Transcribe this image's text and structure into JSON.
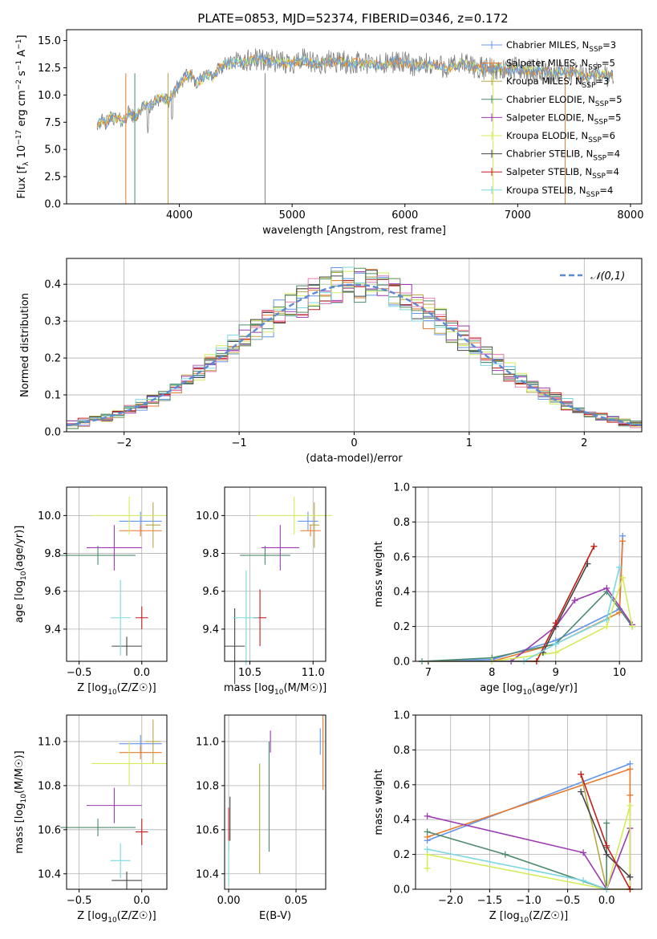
{
  "figure": {
    "title": "PLATE=0853, MJD=52374, FIBERID=0346, z=0.172"
  },
  "colors": {
    "data": "#808080",
    "models": [
      "#6495ed",
      "#e8792b",
      "#b5a642",
      "#4d8a6e",
      "#9a3ab0",
      "#d4ec5a",
      "#444444",
      "#c41f1f",
      "#7ad8e0"
    ],
    "extra": [
      "#e57bb5",
      "#5a8f5a"
    ]
  },
  "chart_data": [
    {
      "id": "spectrum",
      "type": "line",
      "xlabel": "wavelength [Angstrom, rest frame]",
      "ylabel": "Flux [f_λ 10^-17 erg cm^-2 s^-1 A^-1]",
      "xlim": [
        3000,
        8100
      ],
      "ylim": [
        0,
        16
      ],
      "xticks": [
        "4000",
        "5000",
        "6000",
        "7000",
        "8000"
      ],
      "yticks": [
        "0.0",
        "2.5",
        "5.0",
        "7.5",
        "10.0",
        "12.5",
        "15.0"
      ],
      "legend_placement": "right",
      "legend": [
        {
          "label": "Chabrier MILES, N_SSP=3"
        },
        {
          "label": "Salpeter MILES, N_SSP=5"
        },
        {
          "label": "Kroupa MILES, N_SSP=3"
        },
        {
          "label": "Chabrier ELODIE, N_SSP=5"
        },
        {
          "label": "Salpeter ELODIE, N_SSP=5"
        },
        {
          "label": "Kroupa ELODIE, N_SSP=6"
        },
        {
          "label": "Chabrier STELIB, N_SSP=4"
        },
        {
          "label": "Salpeter STELIB, N_SSP=4"
        },
        {
          "label": "Kroupa STELIB, N_SSP=4"
        }
      ],
      "data_x": [
        3270,
        3300,
        3350,
        3400,
        3450,
        3500,
        3550,
        3600,
        3650,
        3700,
        3750,
        3800,
        3850,
        3900,
        3950,
        4000,
        4050,
        4100,
        4150,
        4200,
        4250,
        4300,
        4350,
        4400,
        4500,
        4600,
        4700,
        4800,
        4900,
        5000,
        5100,
        5200,
        5300,
        5400,
        5500,
        5600,
        5700,
        5800,
        5900,
        6000,
        6100,
        6200,
        6300,
        6400,
        6500,
        6600,
        6700,
        6800,
        6900,
        7000,
        7100,
        7200,
        7300,
        7400,
        7500,
        7600,
        7700,
        7800,
        7850
      ],
      "data_y": [
        7.3,
        7.6,
        7.4,
        8.0,
        7.8,
        7.6,
        8.4,
        7.9,
        8.5,
        9.2,
        8.9,
        9.6,
        9.7,
        9.4,
        10.2,
        11.0,
        11.6,
        11.9,
        11.2,
        11.4,
        12.0,
        11.6,
        12.4,
        12.8,
        13.0,
        13.1,
        13.3,
        13.2,
        12.9,
        13.0,
        13.2,
        12.8,
        13.0,
        13.1,
        12.9,
        13.0,
        12.8,
        12.7,
        13.1,
        12.9,
        12.6,
        12.8,
        12.7,
        12.5,
        12.9,
        12.6,
        12.4,
        12.5,
        12.3,
        12.4,
        12.2,
        12.3,
        12.0,
        12.2,
        12.1,
        11.6,
        12.0,
        11.8,
        12.0
      ]
    },
    {
      "id": "residuals",
      "type": "histogram",
      "xlabel": "(data-model)/error",
      "ylabel": "Normed distribution",
      "xlim": [
        -2.5,
        2.5
      ],
      "ylim": [
        0,
        0.47
      ],
      "xticks": [
        "-2",
        "-1",
        "0",
        "1",
        "2"
      ],
      "yticks": [
        "0.0",
        "0.1",
        "0.2",
        "0.3",
        "0.4"
      ],
      "legend": [
        {
          "label": "𝒩(0,1)"
        }
      ],
      "legend_placement": "top-right",
      "bin_width": 0.1
    },
    {
      "id": "age_vs_Z",
      "type": "errorbar",
      "xlabel": "Z [log10(Z/Z☉)]",
      "ylabel": "age  [log10(age/yr)]",
      "xlim": [
        -0.6,
        0.2
      ],
      "ylim": [
        9.23,
        10.15
      ],
      "xticks": [
        "-0.5",
        "0.0"
      ],
      "yticks": [
        "9.4",
        "9.6",
        "9.8",
        "10.0"
      ],
      "points": [
        {
          "x": -0.01,
          "xerr": 0.17,
          "y": 9.97,
          "yerr": 0.05
        },
        {
          "x": -0.01,
          "xerr": 0.17,
          "y": 9.92,
          "yerr": 0.03
        },
        {
          "x": 0.09,
          "xerr": 0.06,
          "y": 9.95,
          "yerr": 0.12
        },
        {
          "x": -0.35,
          "xerr": 0.3,
          "y": 9.79,
          "yerr": 0.05
        },
        {
          "x": -0.22,
          "xerr": 0.22,
          "y": 9.83,
          "yerr": 0.12
        },
        {
          "x": -0.1,
          "xerr": 0.3,
          "y": 10.0,
          "yerr": 0.1
        },
        {
          "x": -0.12,
          "xerr": 0.12,
          "y": 9.31,
          "yerr": 0.05
        },
        {
          "x": 0.0,
          "xerr": 0.05,
          "y": 9.46,
          "yerr": 0.06
        },
        {
          "x": -0.17,
          "xerr": 0.08,
          "y": 9.46,
          "yerr": 0.2
        }
      ]
    },
    {
      "id": "age_vs_mass",
      "type": "errorbar",
      "xlabel": "mass [log10(M/M☉)]",
      "ylabel": "",
      "xlim": [
        10.3,
        11.1
      ],
      "ylim": [
        9.23,
        10.15
      ],
      "xticks": [
        "10.5",
        "11.0"
      ],
      "yticks": [
        "9.4",
        "9.6",
        "9.8",
        "10.0"
      ],
      "points": [
        {
          "x": 10.96,
          "xerr": 0.08,
          "y": 9.97,
          "yerr": 0.05
        },
        {
          "x": 10.98,
          "xerr": 0.08,
          "y": 9.92,
          "yerr": 0.03
        },
        {
          "x": 11.01,
          "xerr": 0.04,
          "y": 9.95,
          "yerr": 0.12
        },
        {
          "x": 10.62,
          "xerr": 0.2,
          "y": 9.79,
          "yerr": 0.05
        },
        {
          "x": 10.74,
          "xerr": 0.15,
          "y": 9.83,
          "yerr": 0.12
        },
        {
          "x": 10.85,
          "xerr": 0.3,
          "y": 10.0,
          "yerr": 0.1
        },
        {
          "x": 10.38,
          "xerr": 0.08,
          "y": 9.31,
          "yerr": 0.2
        },
        {
          "x": 10.58,
          "xerr": 0.05,
          "y": 9.46,
          "yerr": 0.15
        },
        {
          "x": 10.47,
          "xerr": 0.1,
          "y": 9.46,
          "yerr": 0.25
        }
      ]
    },
    {
      "id": "mass_weight_vs_age",
      "type": "line",
      "xlabel": "age  [log10(age/yr)]",
      "ylabel": "mass weight",
      "xlim": [
        6.8,
        10.35
      ],
      "ylim": [
        0,
        1.0
      ],
      "xticks": [
        "7",
        "8",
        "9",
        "10"
      ],
      "yticks": [
        "0.0",
        "0.2",
        "0.4",
        "0.6",
        "0.8",
        "1.0"
      ],
      "series": [
        {
          "x": [
            6.9,
            8.0,
            9.0,
            10.0,
            10.05
          ],
          "y": [
            0.0,
            0.01,
            0.12,
            0.3,
            0.72
          ]
        },
        {
          "x": [
            6.9,
            8.0,
            9.0,
            10.0,
            10.05
          ],
          "y": [
            0.0,
            0.0,
            0.1,
            0.28,
            0.69
          ]
        },
        {
          "x": [
            6.9,
            8.7,
            9.0,
            9.6
          ],
          "y": [
            0.0,
            0.0,
            0.22,
            0.66
          ]
        },
        {
          "x": [
            6.9,
            8.0,
            9.0,
            9.8,
            10.2
          ],
          "y": [
            0.0,
            0.02,
            0.1,
            0.4,
            0.2
          ]
        },
        {
          "x": [
            8.3,
            9.0,
            9.3,
            9.8,
            10.2
          ],
          "y": [
            0.0,
            0.2,
            0.35,
            0.42,
            0.21
          ]
        },
        {
          "x": [
            6.9,
            8.0,
            9.0,
            9.8,
            10.05,
            10.2
          ],
          "y": [
            0.0,
            0.0,
            0.05,
            0.2,
            0.48,
            0.2
          ]
        },
        {
          "x": [
            8.8,
            9.0,
            9.5
          ],
          "y": [
            0.05,
            0.2,
            0.56
          ]
        },
        {
          "x": [
            6.9,
            8.7,
            9.0,
            9.6
          ],
          "y": [
            0.0,
            0.0,
            0.22,
            0.66
          ]
        },
        {
          "x": [
            6.9,
            8.5,
            9.0,
            9.8,
            10.0
          ],
          "y": [
            0.0,
            0.0,
            0.1,
            0.24,
            0.54
          ]
        }
      ]
    },
    {
      "id": "mass_vs_Z",
      "type": "errorbar",
      "xlabel": "Z [log10(Z/Z☉)]",
      "ylabel": "mass [log10(M/M☉)]",
      "xlim": [
        -0.6,
        0.2
      ],
      "ylim": [
        10.33,
        11.12
      ],
      "xticks": [
        "-0.5",
        "0.0"
      ],
      "yticks": [
        "10.4",
        "10.6",
        "10.8",
        "11.0"
      ],
      "points": [
        {
          "x": -0.01,
          "xerr": 0.17,
          "y": 10.99,
          "yerr": 0.04
        },
        {
          "x": -0.01,
          "xerr": 0.17,
          "y": 10.95,
          "yerr": 0.03
        },
        {
          "x": 0.09,
          "xerr": 0.06,
          "y": 11.0,
          "yerr": 0.1
        },
        {
          "x": -0.35,
          "xerr": 0.3,
          "y": 10.61,
          "yerr": 0.04
        },
        {
          "x": -0.22,
          "xerr": 0.22,
          "y": 10.71,
          "yerr": 0.08
        },
        {
          "x": -0.1,
          "xerr": 0.3,
          "y": 10.9,
          "yerr": 0.1
        },
        {
          "x": -0.12,
          "xerr": 0.12,
          "y": 10.37,
          "yerr": 0.04
        },
        {
          "x": 0.0,
          "xerr": 0.05,
          "y": 10.59,
          "yerr": 0.06
        },
        {
          "x": -0.17,
          "xerr": 0.08,
          "y": 10.46,
          "yerr": 0.08
        }
      ]
    },
    {
      "id": "mass_vs_EBV",
      "type": "errorbar",
      "xlabel": "E(B-V)",
      "ylabel": "",
      "xlim": [
        -0.003,
        0.072
      ],
      "ylim": [
        10.33,
        11.12
      ],
      "xticks": [
        "0.00",
        "0.05"
      ],
      "yticks": [
        "10.4",
        "10.6",
        "10.8",
        "11.0"
      ],
      "points": [
        {
          "x": 0.068,
          "yerr": 0.06,
          "y": 11.0
        },
        {
          "x": 0.07,
          "yerr": 0.17,
          "y": 10.95
        },
        {
          "x": 0.023,
          "yerr": 0.25,
          "y": 10.65
        },
        {
          "x": 0.03,
          "yerr": 0.25,
          "y": 10.75
        },
        {
          "x": 0.031,
          "yerr": 0.05,
          "y": 11.0
        },
        {
          "x": 0.0,
          "yerr": 0.12,
          "y": 10.47
        },
        {
          "x": 0.001,
          "yerr": 0.1,
          "y": 10.65
        },
        {
          "x": 0.0,
          "yerr": 0.1,
          "y": 10.6
        },
        {
          "x": 0.0,
          "yerr": 0.1,
          "y": 10.45
        }
      ]
    },
    {
      "id": "mass_weight_vs_Z",
      "type": "line",
      "xlabel": "Z [log10(Z/Z☉)]",
      "ylabel": "mass weight",
      "xlim": [
        -2.45,
        0.45
      ],
      "ylim": [
        0,
        1.0
      ],
      "xticks": [
        "-2.0",
        "-1.5",
        "-1.0",
        "-0.5",
        "0.0"
      ],
      "yticks": [
        "0.0",
        "0.2",
        "0.4",
        "0.6",
        "0.8",
        "1.0"
      ],
      "series": [
        {
          "x": [
            -2.3,
            0.3
          ],
          "y": [
            0.28,
            0.72
          ]
        },
        {
          "x": [
            -2.3,
            0.3,
            0.3,
            0.3
          ],
          "y": [
            0.3,
            0.69,
            0.54,
            0.0
          ]
        },
        {
          "x": [
            -0.33,
            0.0,
            0.3,
            0.3
          ],
          "y": [
            0.66,
            0.0,
            0.0,
            0.0
          ]
        },
        {
          "x": [
            -2.3,
            -1.3,
            0.0,
            0.0,
            0.0
          ],
          "y": [
            0.33,
            0.2,
            0.0,
            0.38,
            0.24
          ]
        },
        {
          "x": [
            -2.3,
            -0.3,
            0.0,
            0.3,
            0.3
          ],
          "y": [
            0.42,
            0.21,
            0.0,
            0.35,
            0.0
          ]
        },
        {
          "x": [
            -2.3,
            -2.3,
            0.0,
            0.3,
            0.3
          ],
          "y": [
            0.12,
            0.2,
            0.0,
            0.48,
            0.0
          ]
        },
        {
          "x": [
            -0.33,
            0.0,
            0.3
          ],
          "y": [
            0.56,
            0.2,
            0.07
          ]
        },
        {
          "x": [
            -0.33,
            0.0,
            0.3
          ],
          "y": [
            0.66,
            0.25,
            0.0
          ]
        },
        {
          "x": [
            -2.3,
            -0.3,
            0.0
          ],
          "y": [
            0.23,
            0.05,
            0.0
          ]
        }
      ]
    }
  ]
}
